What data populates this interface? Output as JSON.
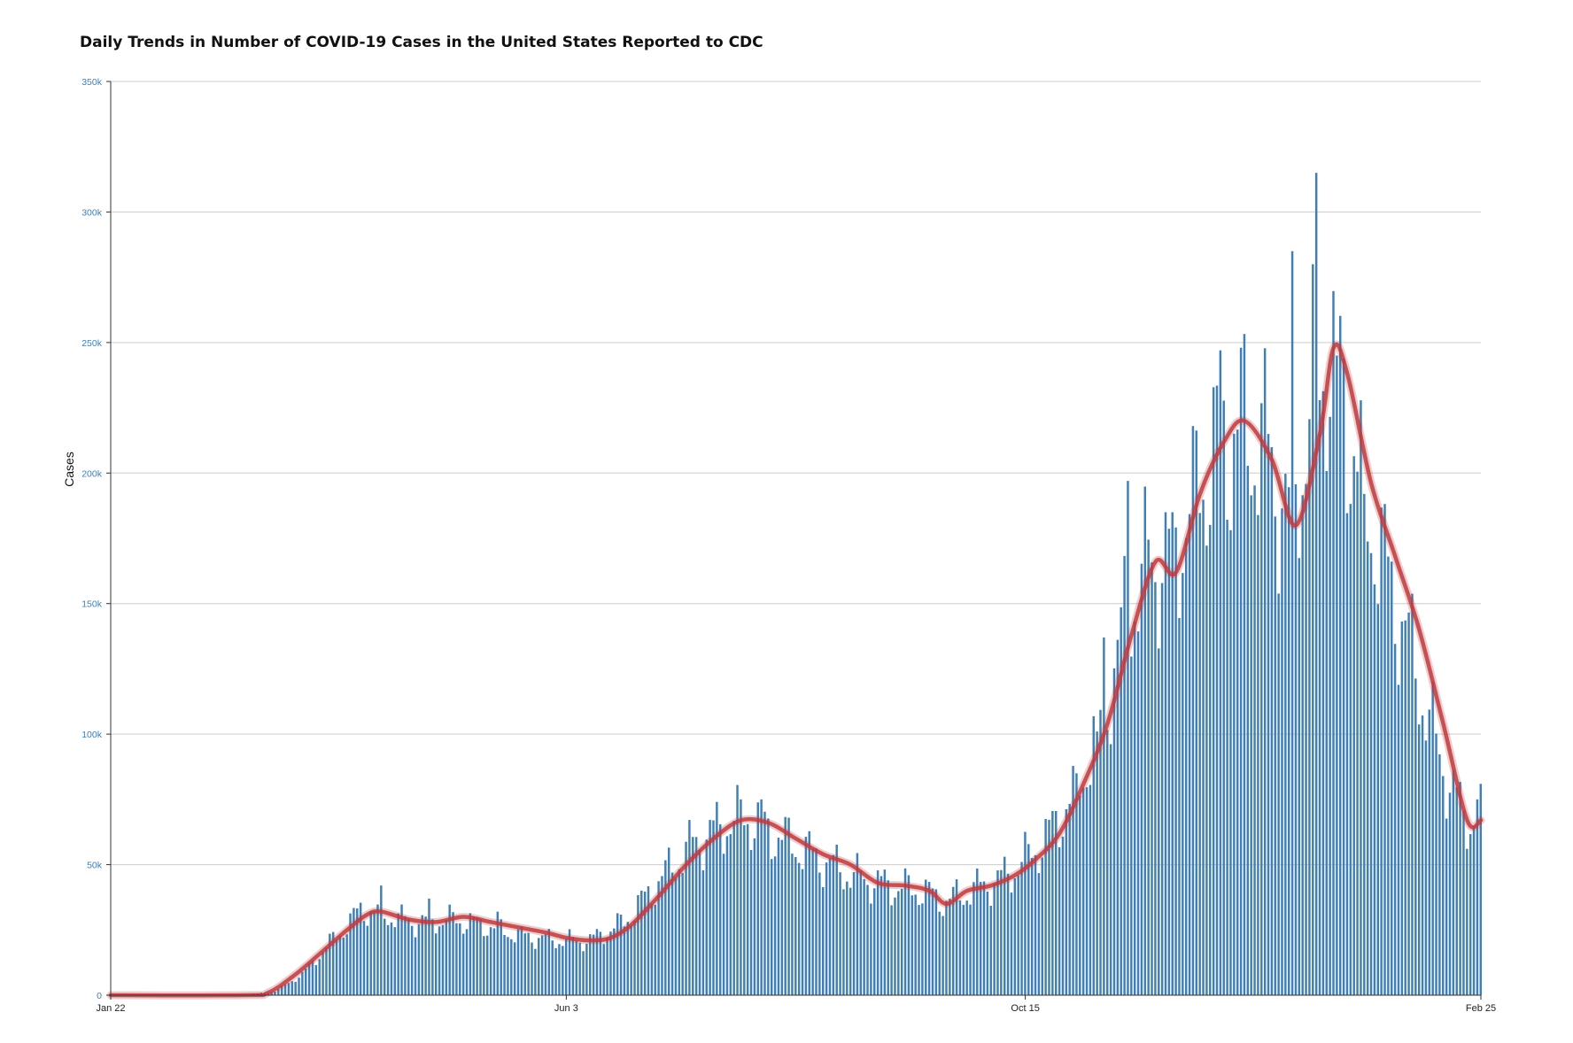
{
  "colors": {
    "bar": "#3f7fb5",
    "avg_line": "#c0393d",
    "grid": "#cccccc",
    "ytick": "#3f7fb5",
    "axis": "#333333"
  },
  "chart_data": {
    "type": "bar",
    "title": "Daily Trends in Number of COVID-19 Cases in the United States Reported to CDC",
    "ylabel": "Cases",
    "xlabel": "",
    "ylim": [
      0,
      350000
    ],
    "yticks": [
      0,
      50000,
      100000,
      150000,
      200000,
      250000,
      300000,
      350000
    ],
    "ytick_labels": [
      "0",
      "50k",
      "100k",
      "150k",
      "200k",
      "250k",
      "300k",
      "350k"
    ],
    "x_start": "2020-01-22",
    "x_end": "2021-02-25",
    "xtick_labels": [
      "Jan 22",
      "Jun 3",
      "Oct 15",
      "Feb 25"
    ],
    "xtick_dates": [
      "2020-01-22",
      "2020-06-03",
      "2020-10-15",
      "2021-02-25"
    ],
    "grid": true,
    "series": [
      {
        "kind": "bar",
        "anchors": [
          [
            "2020-01-22",
            0
          ],
          [
            "2020-03-01",
            0
          ],
          [
            "2020-03-10",
            1500
          ],
          [
            "2020-03-18",
            8000
          ],
          [
            "2020-03-26",
            20000
          ],
          [
            "2020-04-01",
            28000
          ],
          [
            "2020-04-04",
            33000
          ],
          [
            "2020-04-10",
            31000
          ],
          [
            "2020-04-20",
            28000
          ],
          [
            "2020-05-01",
            29000
          ],
          [
            "2020-05-10",
            27000
          ],
          [
            "2020-05-20",
            23000
          ],
          [
            "2020-06-01",
            21000
          ],
          [
            "2020-06-10",
            21000
          ],
          [
            "2020-06-20",
            28000
          ],
          [
            "2020-07-01",
            45000
          ],
          [
            "2020-07-10",
            58000
          ],
          [
            "2020-07-20",
            66000
          ],
          [
            "2020-07-26",
            68000
          ],
          [
            "2020-08-05",
            60000
          ],
          [
            "2020-08-15",
            53000
          ],
          [
            "2020-08-25",
            46000
          ],
          [
            "2020-09-05",
            42000
          ],
          [
            "2020-09-15",
            40000
          ],
          [
            "2020-09-22",
            36000
          ],
          [
            "2020-10-01",
            41000
          ],
          [
            "2020-10-10",
            46000
          ],
          [
            "2020-10-20",
            58000
          ],
          [
            "2020-10-30",
            78000
          ],
          [
            "2020-11-07",
            108000
          ],
          [
            "2020-11-14",
            148000
          ],
          [
            "2020-11-20",
            165000
          ],
          [
            "2020-11-27",
            168000
          ],
          [
            "2020-12-03",
            190000
          ],
          [
            "2020-12-10",
            210000
          ],
          [
            "2020-12-17",
            216000
          ],
          [
            "2020-12-24",
            210000
          ],
          [
            "2020-12-31",
            182000
          ],
          [
            "2021-01-07",
            225000
          ],
          [
            "2021-01-11",
            245000
          ],
          [
            "2021-01-15",
            235000
          ],
          [
            "2021-01-22",
            190000
          ],
          [
            "2021-01-29",
            160000
          ],
          [
            "2021-02-05",
            130000
          ],
          [
            "2021-02-12",
            95000
          ],
          [
            "2021-02-20",
            68000
          ],
          [
            "2021-02-25",
            68000
          ]
        ],
        "spikes": [
          [
            "2020-04-10",
            42000
          ],
          [
            "2020-04-24",
            37000
          ],
          [
            "2020-05-14",
            32000
          ],
          [
            "2020-07-24",
            75000
          ],
          [
            "2020-07-30",
            75000
          ],
          [
            "2020-10-30",
            85000
          ],
          [
            "2020-11-05",
            101000
          ],
          [
            "2020-11-07",
            137000
          ],
          [
            "2020-11-14",
            197000
          ],
          [
            "2020-11-27",
            185000
          ],
          [
            "2020-12-03",
            218000
          ],
          [
            "2020-12-11",
            247000
          ],
          [
            "2020-12-17",
            248000
          ],
          [
            "2021-01-01",
            285000
          ],
          [
            "2021-01-08",
            315000
          ],
          [
            "2021-01-07",
            280000
          ],
          [
            "2021-01-14",
            245000
          ],
          [
            "2021-01-22",
            192000
          ],
          [
            "2021-02-24",
            75000
          ]
        ]
      },
      {
        "kind": "line",
        "points": [
          [
            "2020-01-22",
            0
          ],
          [
            "2020-03-01",
            0
          ],
          [
            "2020-03-08",
            1000
          ],
          [
            "2020-03-16",
            8000
          ],
          [
            "2020-03-24",
            17000
          ],
          [
            "2020-03-31",
            25000
          ],
          [
            "2020-04-06",
            31000
          ],
          [
            "2020-04-10",
            32000
          ],
          [
            "2020-04-18",
            29000
          ],
          [
            "2020-04-26",
            28000
          ],
          [
            "2020-05-04",
            30000
          ],
          [
            "2020-05-12",
            28000
          ],
          [
            "2020-05-20",
            26000
          ],
          [
            "2020-05-28",
            24000
          ],
          [
            "2020-06-03",
            22000
          ],
          [
            "2020-06-10",
            21000
          ],
          [
            "2020-06-16",
            22000
          ],
          [
            "2020-06-22",
            27000
          ],
          [
            "2020-06-30",
            38000
          ],
          [
            "2020-07-08",
            50000
          ],
          [
            "2020-07-16",
            60000
          ],
          [
            "2020-07-24",
            67000
          ],
          [
            "2020-08-01",
            66000
          ],
          [
            "2020-08-09",
            60000
          ],
          [
            "2020-08-17",
            54000
          ],
          [
            "2020-08-25",
            50000
          ],
          [
            "2020-09-02",
            43000
          ],
          [
            "2020-09-10",
            42000
          ],
          [
            "2020-09-17",
            40000
          ],
          [
            "2020-09-22",
            35000
          ],
          [
            "2020-09-28",
            40000
          ],
          [
            "2020-10-05",
            42000
          ],
          [
            "2020-10-12",
            46000
          ],
          [
            "2020-10-18",
            52000
          ],
          [
            "2020-10-25",
            62000
          ],
          [
            "2020-11-01",
            81000
          ],
          [
            "2020-11-08",
            104000
          ],
          [
            "2020-11-15",
            138000
          ],
          [
            "2020-11-22",
            166000
          ],
          [
            "2020-11-28",
            162000
          ],
          [
            "2020-12-05",
            192000
          ],
          [
            "2020-12-12",
            212000
          ],
          [
            "2020-12-18",
            220000
          ],
          [
            "2020-12-26",
            205000
          ],
          [
            "2021-01-02",
            180000
          ],
          [
            "2021-01-09",
            215000
          ],
          [
            "2021-01-13",
            248000
          ],
          [
            "2021-01-17",
            238000
          ],
          [
            "2021-01-24",
            196000
          ],
          [
            "2021-01-31",
            168000
          ],
          [
            "2021-02-07",
            140000
          ],
          [
            "2021-02-14",
            104000
          ],
          [
            "2021-02-21",
            67000
          ],
          [
            "2021-02-25",
            67000
          ]
        ]
      }
    ]
  }
}
